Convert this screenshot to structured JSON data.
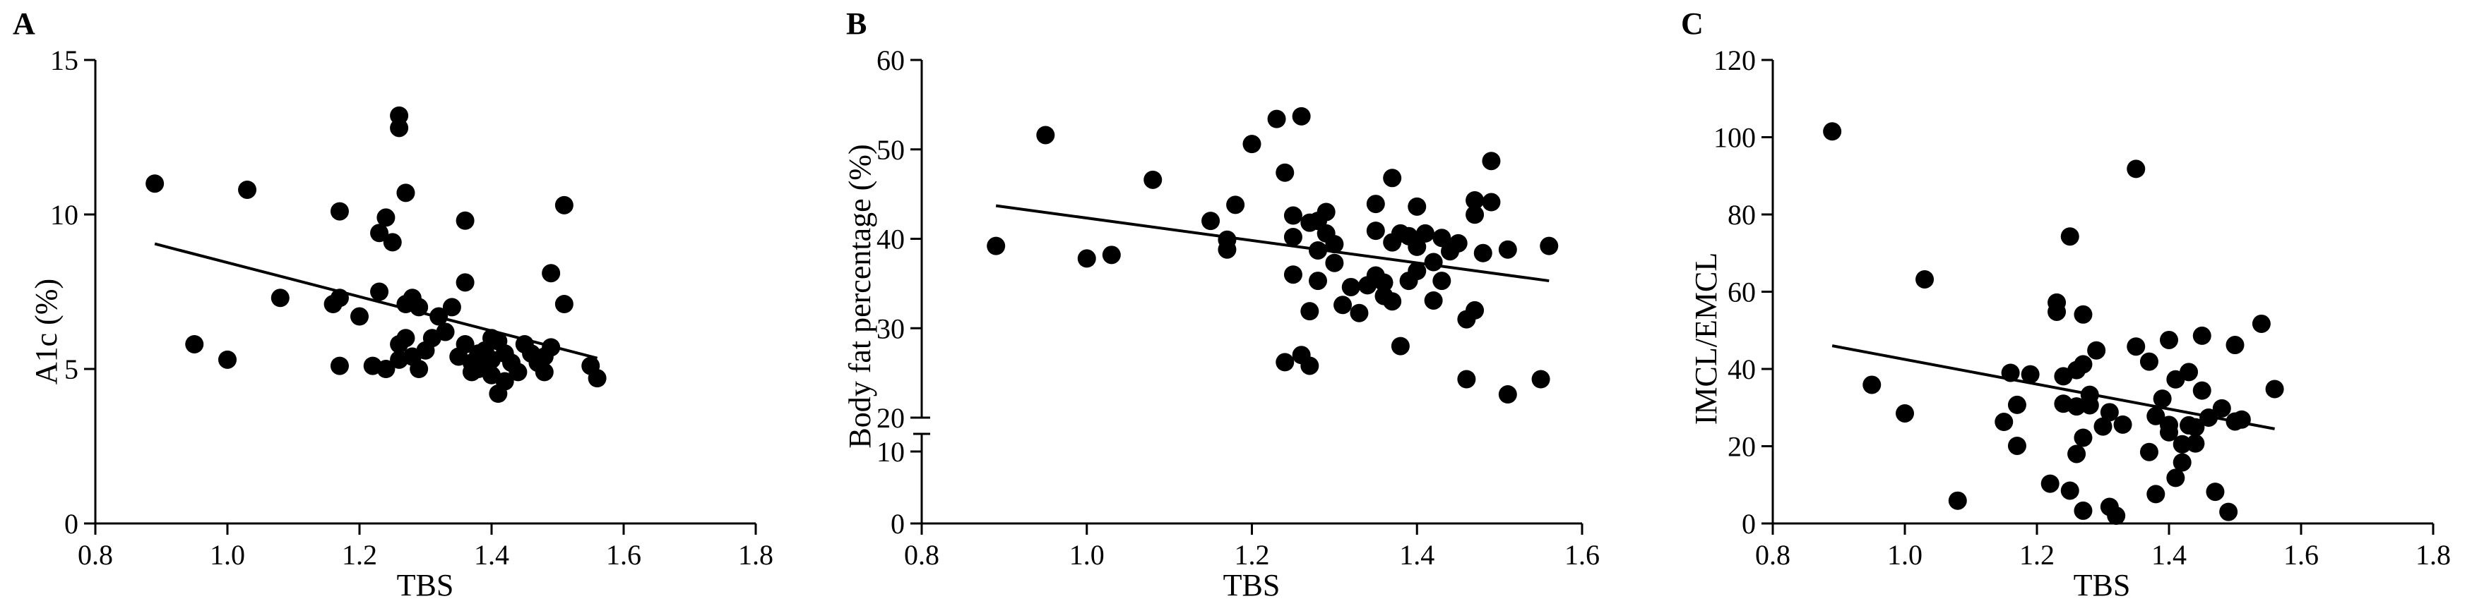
{
  "chart_data": [
    {
      "type": "scatter",
      "letter": "A",
      "xlabel": "TBS",
      "ylabel": "A1c (%)",
      "xlim": [
        0.8,
        1.8
      ],
      "ylim": [
        0,
        15
      ],
      "xticks": [
        "0.8",
        "1.0",
        "1.2",
        "1.4",
        "1.6",
        "1.8"
      ],
      "yticks": [
        "0",
        "5",
        "10",
        "15"
      ],
      "fit": [
        [
          0.89,
          9.05
        ],
        [
          1.56,
          5.35
        ]
      ],
      "points": [
        [
          0.89,
          11.0
        ],
        [
          0.95,
          5.8
        ],
        [
          1.0,
          5.3
        ],
        [
          1.03,
          10.8
        ],
        [
          1.08,
          7.3
        ],
        [
          1.16,
          7.1
        ],
        [
          1.17,
          10.1
        ],
        [
          1.17,
          7.3
        ],
        [
          1.17,
          5.1
        ],
        [
          1.2,
          6.7
        ],
        [
          1.22,
          5.1
        ],
        [
          1.23,
          9.4
        ],
        [
          1.23,
          7.5
        ],
        [
          1.24,
          9.9
        ],
        [
          1.24,
          5.0
        ],
        [
          1.25,
          9.1
        ],
        [
          1.26,
          13.2
        ],
        [
          1.26,
          12.8
        ],
        [
          1.26,
          5.8
        ],
        [
          1.26,
          5.3
        ],
        [
          1.27,
          10.7
        ],
        [
          1.27,
          7.1
        ],
        [
          1.27,
          6.0
        ],
        [
          1.28,
          7.3
        ],
        [
          1.28,
          5.4
        ],
        [
          1.29,
          7.0
        ],
        [
          1.29,
          5.0
        ],
        [
          1.3,
          5.6
        ],
        [
          1.31,
          6.0
        ],
        [
          1.32,
          6.7
        ],
        [
          1.33,
          6.2
        ],
        [
          1.34,
          7.0
        ],
        [
          1.35,
          5.4
        ],
        [
          1.36,
          9.8
        ],
        [
          1.36,
          7.8
        ],
        [
          1.36,
          5.8
        ],
        [
          1.37,
          5.2
        ],
        [
          1.37,
          4.9
        ],
        [
          1.38,
          5.5
        ],
        [
          1.38,
          5.0
        ],
        [
          1.39,
          5.6
        ],
        [
          1.39,
          5.1
        ],
        [
          1.4,
          6.0
        ],
        [
          1.4,
          5.3
        ],
        [
          1.4,
          4.8
        ],
        [
          1.41,
          5.9
        ],
        [
          1.41,
          4.2
        ],
        [
          1.42,
          5.5
        ],
        [
          1.42,
          4.6
        ],
        [
          1.43,
          5.2
        ],
        [
          1.44,
          4.9
        ],
        [
          1.45,
          5.8
        ],
        [
          1.46,
          5.5
        ],
        [
          1.47,
          5.2
        ],
        [
          1.48,
          5.4
        ],
        [
          1.48,
          4.9
        ],
        [
          1.49,
          8.1
        ],
        [
          1.49,
          5.7
        ],
        [
          1.51,
          10.3
        ],
        [
          1.51,
          7.1
        ],
        [
          1.55,
          5.1
        ],
        [
          1.56,
          4.7
        ]
      ]
    },
    {
      "type": "scatter",
      "letter": "B",
      "xlabel": "TBS",
      "ylabel": "Body fat percentage (%)",
      "xlim": [
        0.8,
        1.6
      ],
      "ylim": [
        0,
        60
      ],
      "axis_break": true,
      "xticks": [
        "0.8",
        "1.0",
        "1.2",
        "1.4",
        "1.6"
      ],
      "yticks_upper": [
        "20",
        "30",
        "40",
        "50",
        "60"
      ],
      "yticks_lower": [
        "0",
        "10"
      ],
      "fit": [
        [
          0.89,
          43.7
        ],
        [
          1.56,
          35.3
        ]
      ],
      "points": [
        [
          0.89,
          39.2
        ],
        [
          0.95,
          51.6
        ],
        [
          1.0,
          37.8
        ],
        [
          1.03,
          38.2
        ],
        [
          1.08,
          46.6
        ],
        [
          1.15,
          42.0
        ],
        [
          1.17,
          39.9
        ],
        [
          1.17,
          38.8
        ],
        [
          1.18,
          43.8
        ],
        [
          1.2,
          50.6
        ],
        [
          1.23,
          53.4
        ],
        [
          1.24,
          47.4
        ],
        [
          1.24,
          26.2
        ],
        [
          1.25,
          42.6
        ],
        [
          1.25,
          40.2
        ],
        [
          1.25,
          36.0
        ],
        [
          1.26,
          53.7
        ],
        [
          1.26,
          27.0
        ],
        [
          1.27,
          41.8
        ],
        [
          1.27,
          31.9
        ],
        [
          1.27,
          25.8
        ],
        [
          1.28,
          42.0
        ],
        [
          1.28,
          35.3
        ],
        [
          1.28,
          38.7
        ],
        [
          1.29,
          43.0
        ],
        [
          1.29,
          40.6
        ],
        [
          1.3,
          39.4
        ],
        [
          1.3,
          37.3
        ],
        [
          1.31,
          32.6
        ],
        [
          1.32,
          34.6
        ],
        [
          1.33,
          31.7
        ],
        [
          1.34,
          34.8
        ],
        [
          1.35,
          43.9
        ],
        [
          1.35,
          40.9
        ],
        [
          1.35,
          35.9
        ],
        [
          1.36,
          33.6
        ],
        [
          1.36,
          35.1
        ],
        [
          1.37,
          46.8
        ],
        [
          1.37,
          39.6
        ],
        [
          1.37,
          33.0
        ],
        [
          1.38,
          40.6
        ],
        [
          1.38,
          28.0
        ],
        [
          1.39,
          40.3
        ],
        [
          1.39,
          35.3
        ],
        [
          1.4,
          43.6
        ],
        [
          1.4,
          39.1
        ],
        [
          1.4,
          36.4
        ],
        [
          1.41,
          40.6
        ],
        [
          1.42,
          33.1
        ],
        [
          1.42,
          37.4
        ],
        [
          1.43,
          40.1
        ],
        [
          1.43,
          35.3
        ],
        [
          1.44,
          38.6
        ],
        [
          1.45,
          39.5
        ],
        [
          1.46,
          31.0
        ],
        [
          1.46,
          24.3
        ],
        [
          1.47,
          44.3
        ],
        [
          1.47,
          32.0
        ],
        [
          1.47,
          42.7
        ],
        [
          1.48,
          38.4
        ],
        [
          1.49,
          48.7
        ],
        [
          1.49,
          44.1
        ],
        [
          1.51,
          38.8
        ],
        [
          1.51,
          22.6
        ],
        [
          1.55,
          24.3
        ],
        [
          1.56,
          39.2
        ]
      ]
    },
    {
      "type": "scatter",
      "letter": "C",
      "xlabel": "TBS",
      "ylabel": "IMCL/EMCL",
      "xlim": [
        0.8,
        1.8
      ],
      "ylim": [
        0,
        120
      ],
      "xticks": [
        "0.8",
        "1.0",
        "1.2",
        "1.4",
        "1.6",
        "1.8"
      ],
      "yticks": [
        "0",
        "20",
        "40",
        "60",
        "80",
        "100",
        "120"
      ],
      "fit": [
        [
          0.89,
          46.0
        ],
        [
          1.56,
          24.5
        ]
      ],
      "points": [
        [
          0.89,
          101.5
        ],
        [
          0.95,
          35.9
        ],
        [
          1.0,
          28.5
        ],
        [
          1.03,
          63.2
        ],
        [
          1.08,
          5.9
        ],
        [
          1.15,
          26.3
        ],
        [
          1.16,
          39.0
        ],
        [
          1.17,
          20.1
        ],
        [
          1.17,
          30.7
        ],
        [
          1.19,
          38.6
        ],
        [
          1.22,
          10.3
        ],
        [
          1.23,
          57.2
        ],
        [
          1.23,
          54.8
        ],
        [
          1.24,
          38.1
        ],
        [
          1.24,
          31.0
        ],
        [
          1.25,
          8.5
        ],
        [
          1.25,
          74.3
        ],
        [
          1.26,
          30.3
        ],
        [
          1.26,
          18.0
        ],
        [
          1.26,
          39.7
        ],
        [
          1.27,
          54.1
        ],
        [
          1.27,
          41.2
        ],
        [
          1.27,
          22.2
        ],
        [
          1.27,
          3.3
        ],
        [
          1.28,
          33.3
        ],
        [
          1.28,
          30.6
        ],
        [
          1.29,
          44.8
        ],
        [
          1.3,
          25.1
        ],
        [
          1.31,
          28.8
        ],
        [
          1.31,
          4.3
        ],
        [
          1.32,
          2.0
        ],
        [
          1.33,
          25.6
        ],
        [
          1.35,
          91.8
        ],
        [
          1.35,
          45.8
        ],
        [
          1.37,
          41.9
        ],
        [
          1.37,
          18.5
        ],
        [
          1.38,
          7.6
        ],
        [
          1.38,
          27.8
        ],
        [
          1.39,
          32.3
        ],
        [
          1.4,
          47.5
        ],
        [
          1.4,
          25.5
        ],
        [
          1.4,
          23.6
        ],
        [
          1.41,
          37.3
        ],
        [
          1.41,
          11.8
        ],
        [
          1.42,
          20.5
        ],
        [
          1.42,
          15.8
        ],
        [
          1.43,
          39.2
        ],
        [
          1.43,
          25.4
        ],
        [
          1.44,
          24.9
        ],
        [
          1.44,
          20.7
        ],
        [
          1.45,
          48.6
        ],
        [
          1.45,
          34.4
        ],
        [
          1.46,
          27.4
        ],
        [
          1.47,
          8.2
        ],
        [
          1.48,
          29.8
        ],
        [
          1.49,
          3.0
        ],
        [
          1.5,
          46.2
        ],
        [
          1.5,
          26.4
        ],
        [
          1.51,
          26.9
        ],
        [
          1.54,
          51.7
        ],
        [
          1.56,
          34.8
        ]
      ]
    }
  ]
}
